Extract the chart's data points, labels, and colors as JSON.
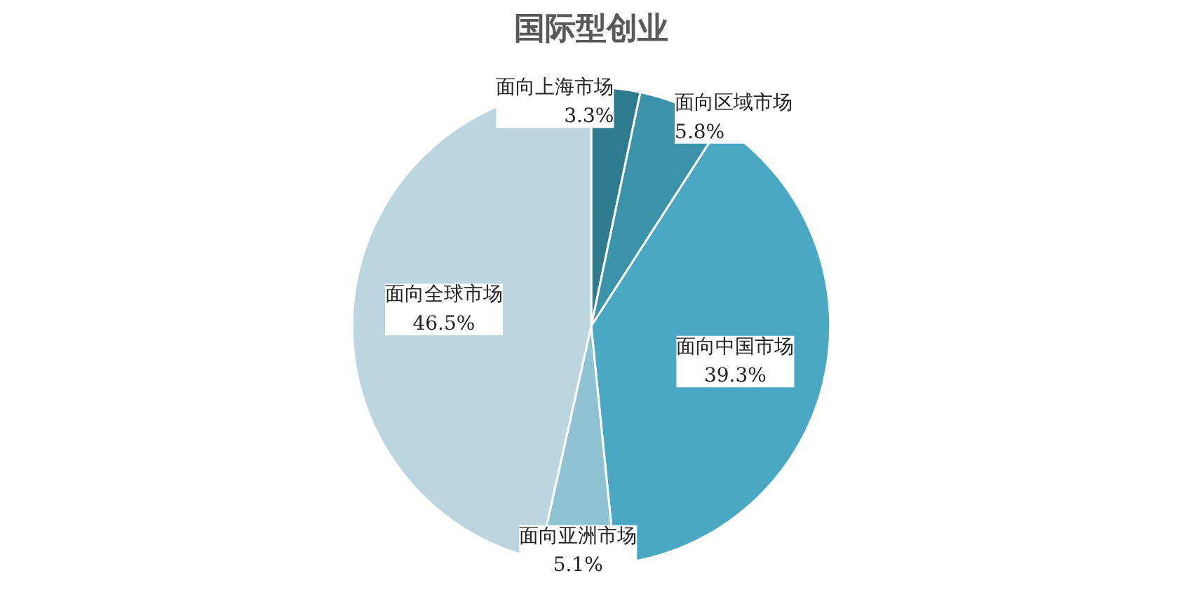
{
  "chart_data": {
    "type": "pie",
    "title": "国际型创业",
    "categories": [
      "面向上海市场",
      "面向区域市场",
      "面向中国市场",
      "面向亚洲市场",
      "面向全球市场"
    ],
    "values": [
      3.3,
      5.8,
      39.3,
      5.1,
      46.5
    ],
    "value_labels": [
      "3.3%",
      "5.8%",
      "39.3%",
      "5.1%",
      "46.5%"
    ],
    "colors": [
      "#2e7a8f",
      "#3a93a8",
      "#4aa8c4",
      "#8fc3d3",
      "#bcd6e0"
    ]
  }
}
